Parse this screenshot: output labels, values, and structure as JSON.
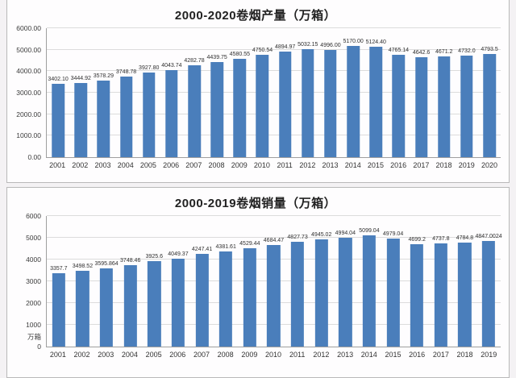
{
  "page": {
    "background": "#f4f2f4",
    "panel_background": "#fefdfe",
    "border_color": "#b9b9b9"
  },
  "chart_data": [
    {
      "type": "bar",
      "title": "2000-2020卷烟产量（万箱）",
      "bar_color": "#4a7ebb",
      "ylim": [
        0,
        6000
      ],
      "grid": true,
      "legend": "none",
      "yticks": [
        {
          "label": "6000.00",
          "value": 6000
        },
        {
          "label": "5000.00",
          "value": 5000
        },
        {
          "label": "4000.00",
          "value": 4000
        },
        {
          "label": "3000.00",
          "value": 3000
        },
        {
          "label": "2000.00",
          "value": 2000
        },
        {
          "label": "1000.00",
          "value": 1000
        },
        {
          "label": "0.00",
          "value": 0
        }
      ],
      "categories": [
        "2001",
        "2002",
        "2003",
        "2004",
        "2005",
        "2006",
        "2007",
        "2008",
        "2009",
        "2010",
        "2011",
        "2012",
        "2013",
        "2014",
        "2015",
        "2016",
        "2017",
        "2018",
        "2019",
        "2020"
      ],
      "values": [
        3402.1,
        3444.92,
        3578.29,
        3748.78,
        3927.8,
        4043.74,
        4282.78,
        4439.75,
        4580.55,
        4750.54,
        4894.97,
        5032.15,
        4996.0,
        5170.0,
        5124.4,
        4765.14,
        4642.6,
        4671.2,
        4732.0,
        4793.5
      ],
      "value_labels": [
        "3402.10",
        "3444.92",
        "3578.29",
        "3748.78",
        "3927.80",
        "4043.74",
        "4282.78",
        "4439.75",
        "4580.55",
        "4750.54",
        "4894.97",
        "5032.15",
        "4996.00",
        "5170.00",
        "5124.40",
        "4765.14",
        "4642.6",
        "4671.2",
        "4732.0",
        "4793.5"
      ]
    },
    {
      "type": "bar",
      "title": "2000-2019卷烟销量（万箱）",
      "bar_color": "#4a7ebb",
      "ylim": [
        0,
        6000
      ],
      "grid": true,
      "legend": "none",
      "unit_axis_label": "万箱",
      "yticks": [
        {
          "label": "6000",
          "value": 6000
        },
        {
          "label": "5000",
          "value": 5000
        },
        {
          "label": "4000",
          "value": 4000
        },
        {
          "label": "3000",
          "value": 3000
        },
        {
          "label": "2000",
          "value": 2000
        },
        {
          "label": "1000",
          "value": 1000
        },
        {
          "label": "万箱",
          "value": 430
        },
        {
          "label": "0",
          "value": 0
        }
      ],
      "categories": [
        "2001",
        "2002",
        "2003",
        "2004",
        "2005",
        "2006",
        "2007",
        "2008",
        "2009",
        "2010",
        "2011",
        "2012",
        "2013",
        "2014",
        "2015",
        "2016",
        "2017",
        "2018",
        "2019"
      ],
      "values": [
        3357.7,
        3498.52,
        3595.864,
        3748.46,
        3925.6,
        4049.37,
        4247.41,
        4381.61,
        4529.44,
        4684.47,
        4827.73,
        4945.02,
        4994.04,
        5099.04,
        4979.04,
        4699.2,
        4737.8,
        4784.8,
        4847.0024
      ],
      "value_labels": [
        "3357.7",
        "3498.52",
        "3595.864",
        "3748.46",
        "3925.6",
        "4049.37",
        "4247.41",
        "4381.61",
        "4529.44",
        "4684.47",
        "4827.73",
        "4945.02",
        "4994.04",
        "5099.04",
        "4979.04",
        "4699.2",
        "4737.8",
        "4784.8",
        "4847.0024"
      ]
    }
  ]
}
